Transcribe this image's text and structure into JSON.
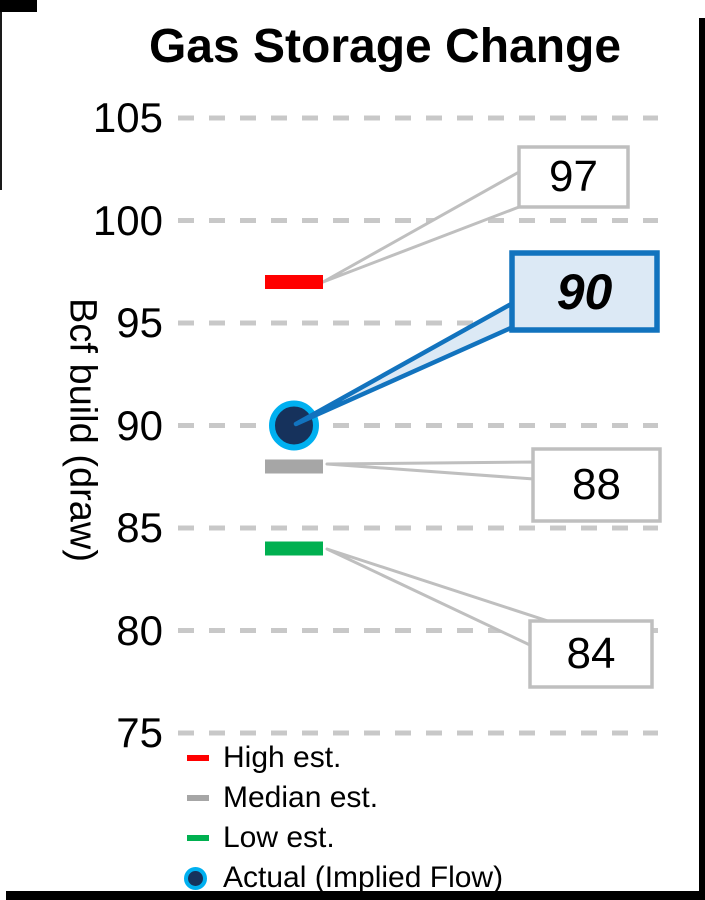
{
  "chart_data": {
    "type": "scatter",
    "title": "Gas Storage Change",
    "ylabel": "Bcf build (draw)",
    "xlabel": "",
    "ylim": [
      75,
      105
    ],
    "yticks": [
      105,
      100,
      95,
      90,
      85,
      80,
      75
    ],
    "grid": true,
    "gridline_style": "dashed",
    "legend_position": "bottom-left",
    "series": [
      {
        "name": "High est.",
        "value": 97,
        "marker": "dash",
        "color": "#FF0000"
      },
      {
        "name": "Median est.",
        "value": 88,
        "marker": "dash",
        "color": "#A6A6A6"
      },
      {
        "name": "Low est.",
        "value": 84,
        "marker": "dash",
        "color": "#00B050"
      },
      {
        "name": "Actual (Implied Flow)",
        "value": 90,
        "marker": "circle",
        "color": "#16325C",
        "ring_color": "#00B0F0"
      }
    ],
    "callouts": [
      {
        "value": 97,
        "style": "estimate"
      },
      {
        "value": 90,
        "style": "actual"
      },
      {
        "value": 88,
        "style": "estimate"
      },
      {
        "value": 84,
        "style": "estimate"
      }
    ]
  },
  "colors": {
    "high_red": "#FF0000",
    "median_gray": "#A6A6A6",
    "low_green": "#00B050",
    "actual_fill": "#16325C",
    "actual_ring": "#00B0F0",
    "callout_gray_border": "#BFBFBF",
    "callout_blue_border": "#1273BE",
    "callout_blue_fill": "#DCE9F5",
    "gridline": "#C8C8C8",
    "frame_black": "#000000"
  }
}
